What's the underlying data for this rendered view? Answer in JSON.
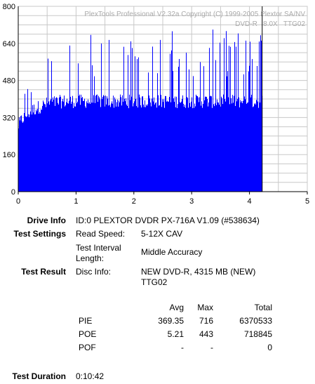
{
  "chart_data": {
    "type": "bar",
    "title": "",
    "xlabel": "",
    "ylabel": "",
    "xlim": [
      0,
      5
    ],
    "ylim": [
      0,
      800
    ],
    "x_ticks": [
      "0",
      "1",
      "2",
      "3",
      "4",
      "5"
    ],
    "y_ticks": [
      "0",
      "160",
      "320",
      "480",
      "640",
      "800"
    ],
    "grid": true,
    "watermark": [
      "PlexTools Professional V2.32a Copyright (C) 1999-2005 Plextor SA/NV",
      "DVD-R   8.0X   TTG02"
    ],
    "marker_x": 4.22,
    "series": [
      {
        "color": "#0000ff",
        "x_end": 4.22,
        "x": [
          0.0,
          0.05,
          0.1,
          0.2,
          0.3,
          0.4,
          0.5,
          0.6,
          0.7,
          0.8,
          0.9,
          1.0,
          1.2,
          1.5,
          1.8,
          2.0,
          2.5,
          3.0,
          3.5,
          4.0,
          4.22
        ],
        "base": [
          280,
          305,
          318,
          340,
          355,
          365,
          375,
          380,
          382,
          385,
          385,
          385,
          385,
          385,
          385,
          385,
          385,
          385,
          385,
          385,
          385
        ],
        "spikes": [
          400,
          420,
          430,
          470,
          500,
          540,
          640,
          660,
          680,
          690,
          690,
          690,
          690,
          690,
          690,
          690,
          700,
          700,
          700,
          700,
          710
        ]
      }
    ]
  },
  "drive_info": {
    "label": "Drive Info",
    "value": "ID:0 PLEXTOR DVDR PX-716A V1.09 (#538634)"
  },
  "test_settings": {
    "label": "Test Settings",
    "read_speed_label": "Read Speed:",
    "read_speed_value": "5-12X CAV",
    "interval_label_1": "Test Interval",
    "interval_label_2": "Length:",
    "interval_value": "Middle Accuracy"
  },
  "test_result": {
    "label": "Test Result",
    "disc_info_label": "Disc Info:",
    "disc_info_line1": "NEW DVD-R, 4315 MB (NEW)",
    "disc_info_line2": "TTG02"
  },
  "stats": {
    "headers": {
      "avg": "Avg",
      "max": "Max",
      "total": "Total"
    },
    "rows": [
      {
        "name": "PIE",
        "avg": "369.35",
        "max": "716",
        "total": "6370533"
      },
      {
        "name": "POE",
        "avg": "5.21",
        "max": "443",
        "total": "718845"
      },
      {
        "name": "POF",
        "avg": "-",
        "max": "-",
        "total": "0"
      }
    ]
  },
  "duration": {
    "label": "Test Duration",
    "value": "0:10:42"
  }
}
